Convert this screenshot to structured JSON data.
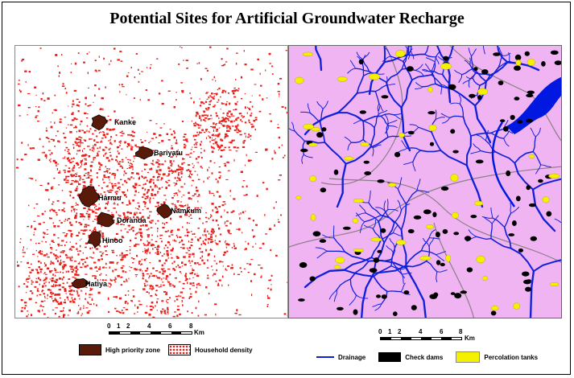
{
  "title": "Potential Sites for Artificial Groundwater Recharge",
  "left_map": {
    "places": [
      {
        "name": "Kanke"
      },
      {
        "name": "Bariyatu"
      },
      {
        "name": "Harmu"
      },
      {
        "name": "Namkum"
      },
      {
        "name": "Doranda"
      },
      {
        "name": "Hinoo"
      },
      {
        "name": "Hatiya"
      }
    ],
    "colors": {
      "zone": "#5a1a0a",
      "density": "#e8201c"
    }
  },
  "right_map": {
    "colors": {
      "background": "#f0b4f2",
      "drainage": "#1020d8",
      "check_dams": "#000000",
      "percolation_tanks": "#f4f000",
      "river": "#0018e0",
      "roads": "#8a7f85"
    }
  },
  "scale_left": {
    "ticks": [
      "0",
      "1",
      "2",
      "4",
      "6",
      "8"
    ],
    "unit": "Km"
  },
  "scale_right": {
    "ticks": [
      "0",
      "1",
      "2",
      "4",
      "6",
      "8"
    ],
    "unit": "Km"
  },
  "legend_left": {
    "high_priority": "High priority zone",
    "household": "Household density"
  },
  "legend_right": {
    "drainage": "Drainage",
    "check_dams": "Check dams",
    "percolation": "Percolation tanks"
  }
}
